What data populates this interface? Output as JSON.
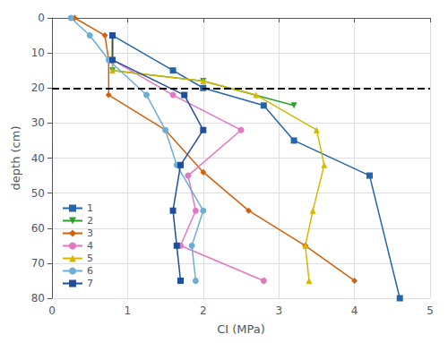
{
  "chart_data": {
    "type": "line",
    "xlabel": "CI (MPa)",
    "ylabel": "depth (cm)",
    "series": [
      {
        "name": "1",
        "color": "#2166ac",
        "marker": "square",
        "x": [
          0.8,
          1.6,
          2.0,
          2.8,
          3.2,
          4.2,
          4.6
        ],
        "values": [
          5,
          15,
          20,
          25,
          35,
          45,
          80
        ]
      },
      {
        "name": "2",
        "color": "#2ca02c",
        "marker": "triangle-down",
        "x": [
          0.8,
          0.8,
          2.0,
          3.2
        ],
        "values": [
          5,
          15,
          18,
          25
        ]
      },
      {
        "name": "3",
        "color": "#d45f0a",
        "marker": "diamond",
        "x": [
          0.3,
          0.7,
          0.75,
          0.75,
          1.5,
          2.0,
          2.6,
          3.35,
          4.0
        ],
        "values": [
          0,
          5,
          12,
          22,
          32,
          44,
          55,
          65,
          75
        ]
      },
      {
        "name": "4",
        "color": "#e377c2",
        "marker": "circle",
        "x": [
          0.8,
          0.8,
          1.6,
          2.5,
          1.8,
          1.9,
          1.7,
          2.8
        ],
        "values": [
          5,
          12,
          22,
          32,
          45,
          55,
          65,
          75
        ]
      },
      {
        "name": "5",
        "color": "#d4b800",
        "marker": "triangle",
        "x": [
          0.8,
          0.8,
          2.0,
          2.7,
          3.5,
          3.6,
          3.45,
          3.35,
          3.4
        ],
        "values": [
          5,
          15,
          18,
          22,
          32,
          42,
          55,
          65,
          75
        ]
      },
      {
        "name": "6",
        "color": "#6baed6",
        "marker": "circle",
        "x": [
          0.25,
          0.5,
          0.75,
          1.25,
          1.5,
          1.65,
          2.0,
          1.85,
          1.9
        ],
        "values": [
          0,
          5,
          12,
          22,
          32,
          42,
          55,
          65,
          75
        ]
      },
      {
        "name": "7",
        "color": "#1f4e9c",
        "marker": "square",
        "x": [
          0.8,
          0.8,
          1.75,
          2.0,
          1.7,
          1.6,
          1.65,
          1.7
        ],
        "values": [
          5,
          12,
          22,
          32,
          42,
          55,
          65,
          75
        ]
      }
    ],
    "reference_lines": [
      {
        "y": 20,
        "color": "#000000",
        "line_style": "dashed"
      }
    ],
    "xlim": [
      0,
      5
    ],
    "ylim": [
      80,
      0
    ],
    "xticks": [
      0,
      1,
      2,
      3,
      4,
      5
    ],
    "yticks": [
      0,
      10,
      20,
      30,
      40,
      50,
      60,
      70,
      80
    ],
    "grid": true,
    "legend": "lower left"
  }
}
